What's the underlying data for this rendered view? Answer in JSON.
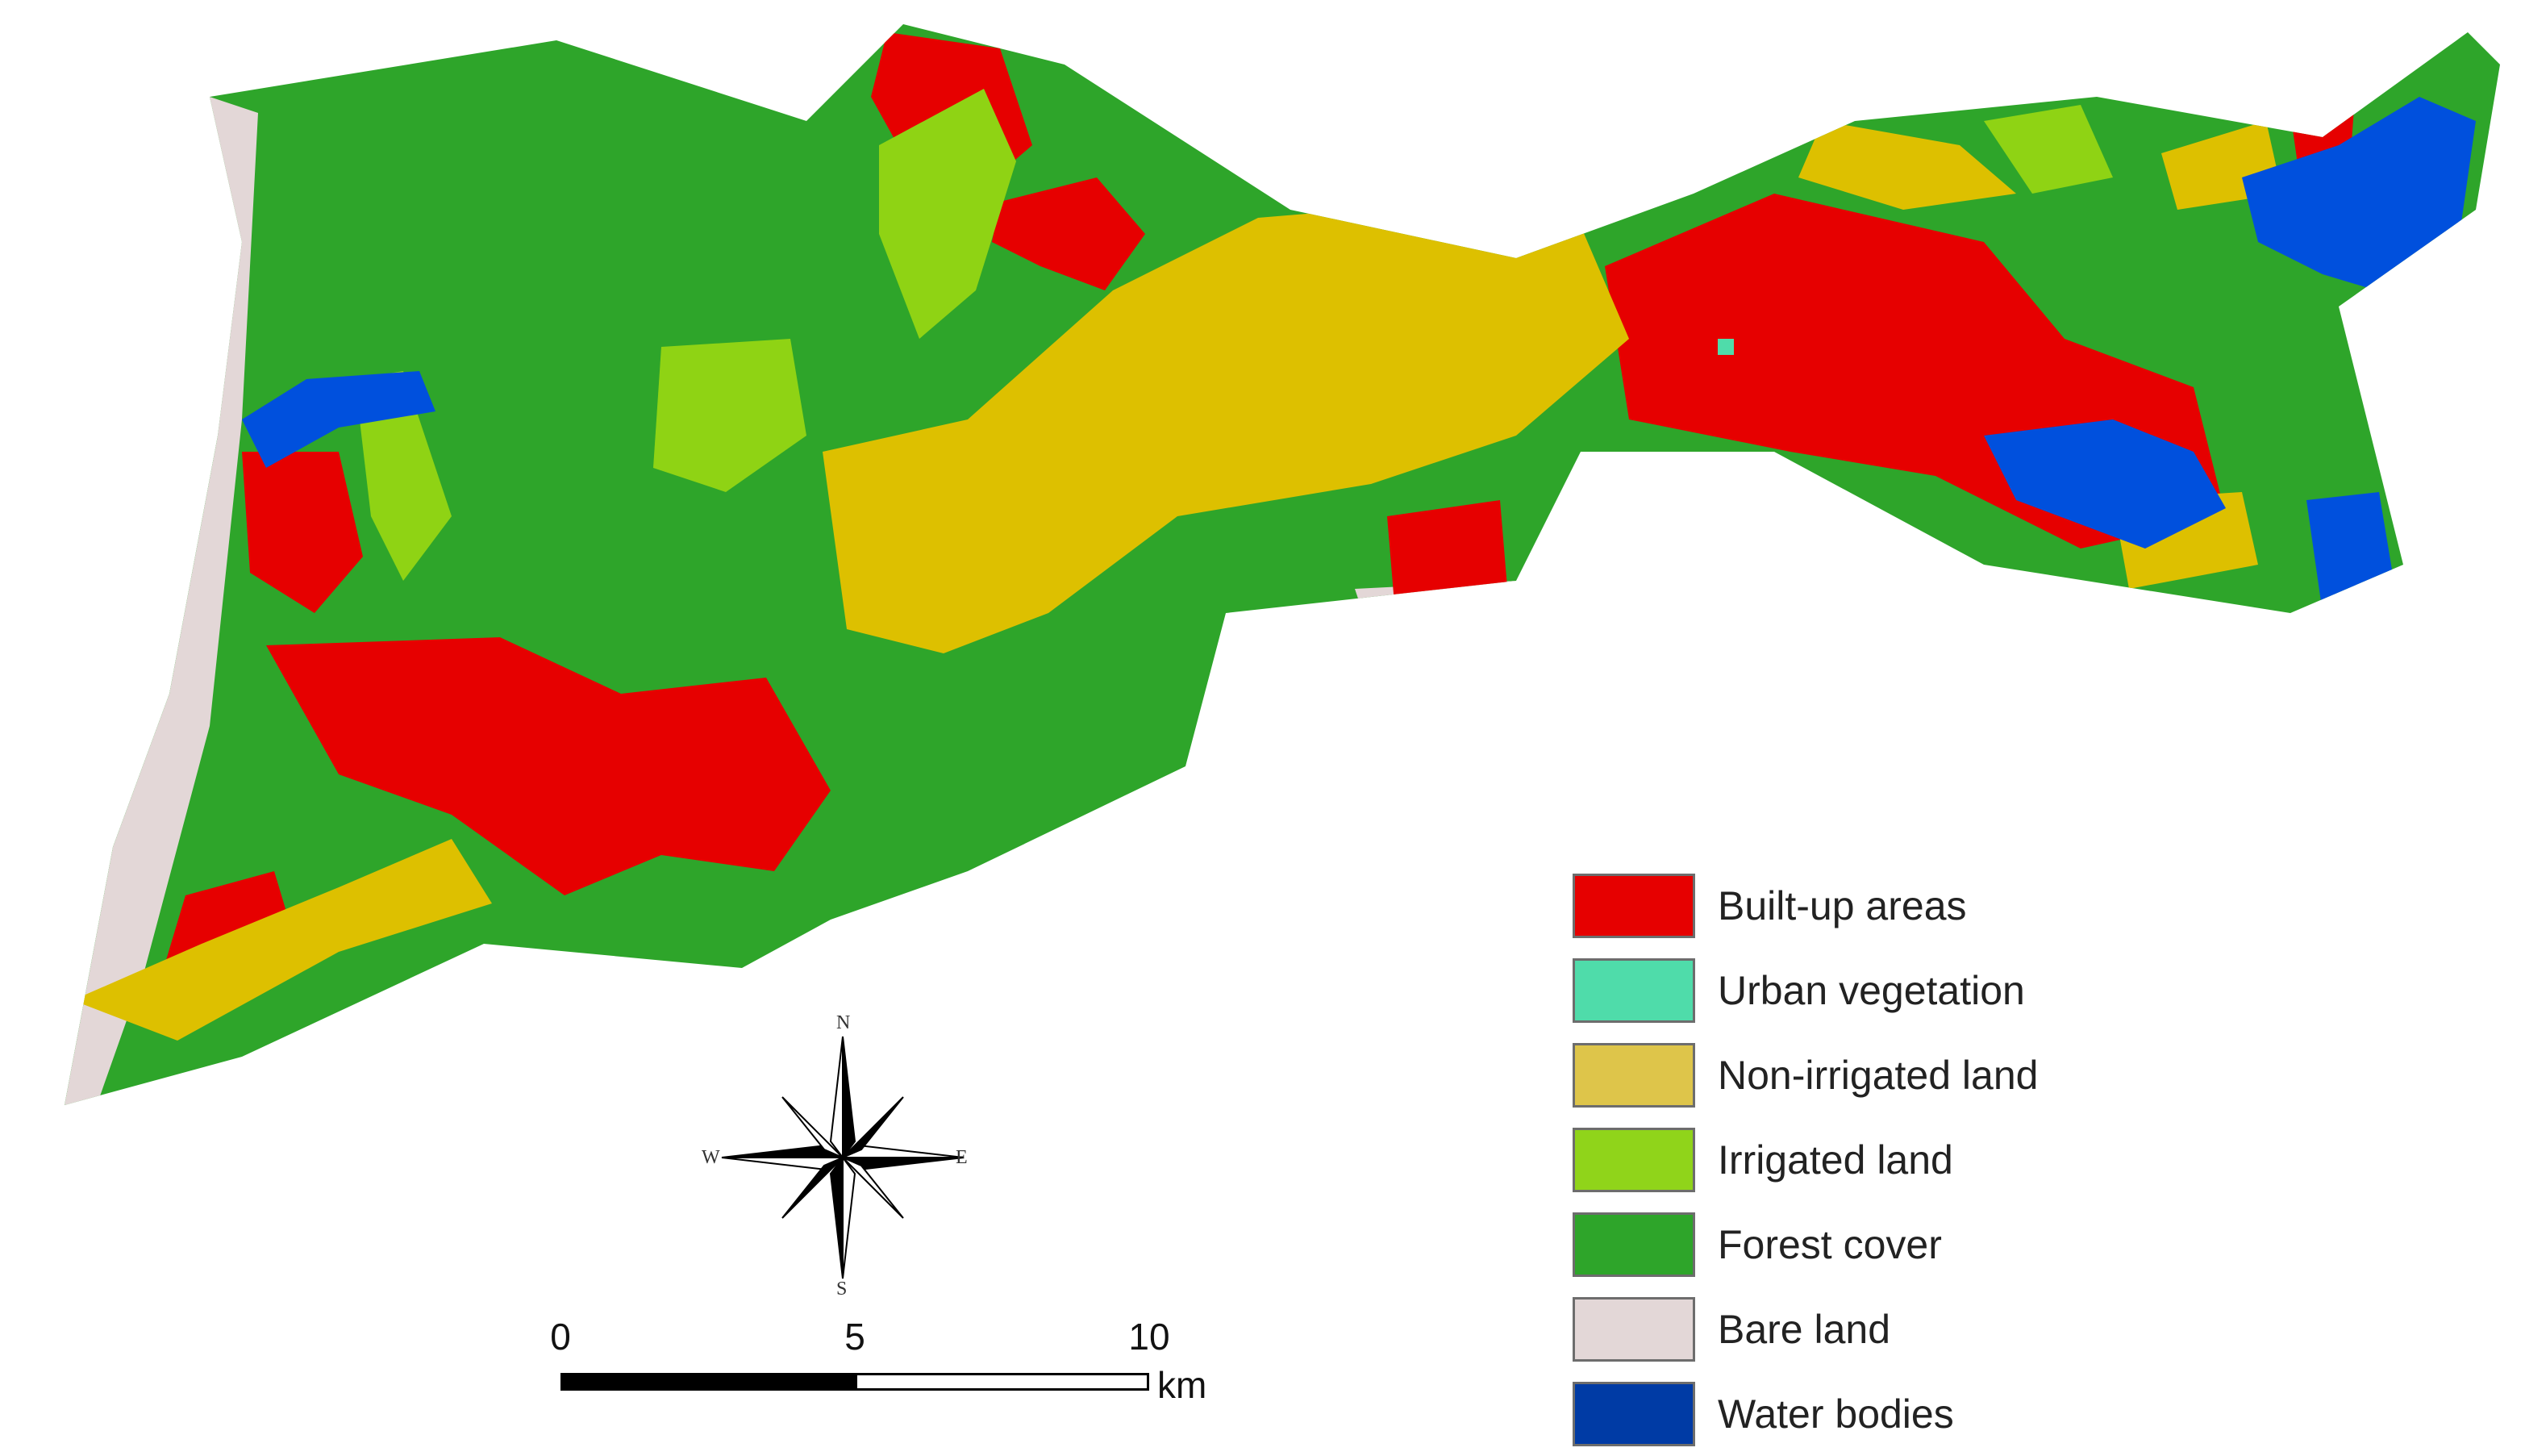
{
  "map": {
    "colors": {
      "built_up": "#e60000",
      "urban_vegetation": "#4fdcaa",
      "non_irrigated": "#ddc000",
      "irrigated": "#8fd314",
      "forest": "#2ea52a",
      "bare": "#e3d7d7",
      "water": "#0050dd"
    }
  },
  "legend": {
    "items": [
      {
        "label": "Built-up areas",
        "color": "#e60000"
      },
      {
        "label": "Urban vegetation",
        "color": "#4fdcaa"
      },
      {
        "label": "Non-irrigated land",
        "color": "#dec54a"
      },
      {
        "label": "Irrigated land",
        "color": "#90d41a"
      },
      {
        "label": "Forest cover",
        "color": "#2ea52a"
      },
      {
        "label": "Bare land",
        "color": "#e3d7d7"
      },
      {
        "label": "Water bodies",
        "color": "#003ba5"
      }
    ]
  },
  "scalebar": {
    "labels": [
      "0",
      "5",
      "10"
    ],
    "unit": "km"
  },
  "compass": {
    "north": "N",
    "south": "S",
    "east": "E",
    "west": "W"
  }
}
